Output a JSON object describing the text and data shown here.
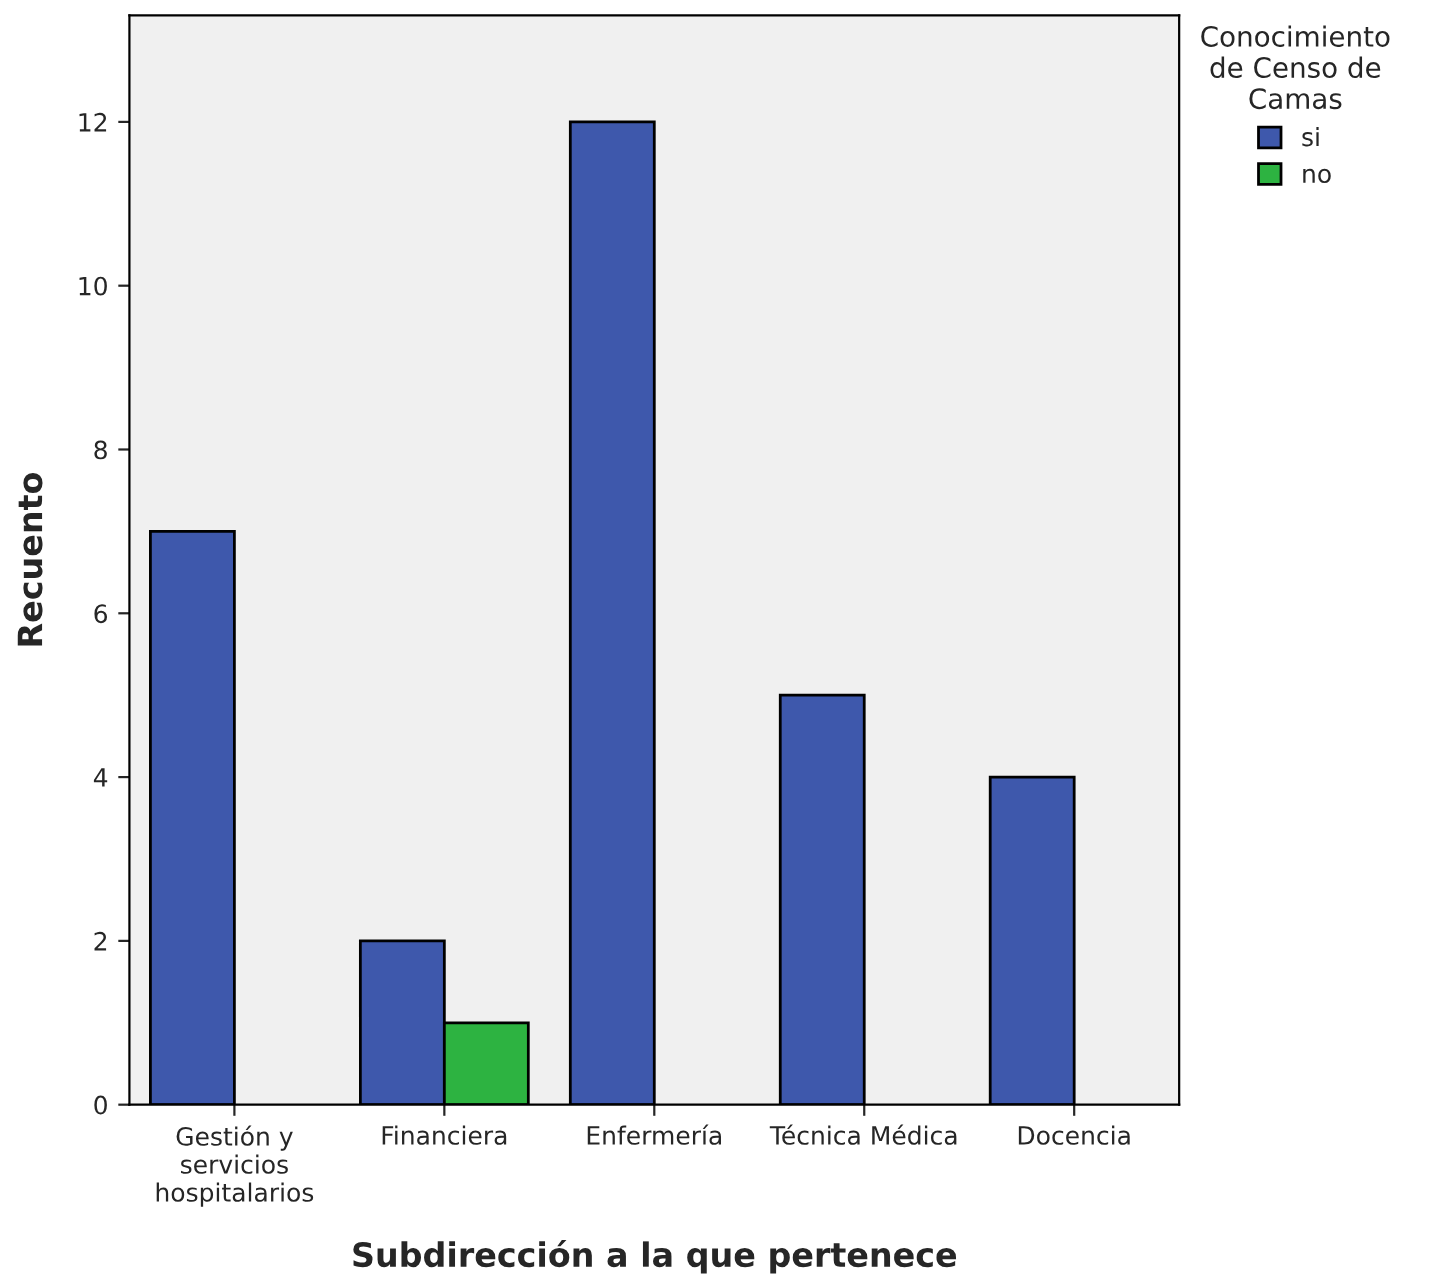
{
  "chart_data": {
    "type": "bar",
    "xlabel": "Subdirección a la que pertenece",
    "ylabel": "Recuento",
    "categories": [
      "Gestión y\nservicios\nhospitalarios",
      "Financiera",
      "Enfermería",
      "Técnica Médica",
      "Docencia"
    ],
    "series": [
      {
        "name": "si",
        "color": "#3e58ac",
        "values": [
          7,
          2,
          12,
          5,
          4
        ]
      },
      {
        "name": "no",
        "color": "#2db341",
        "values": [
          null,
          1,
          null,
          null,
          null
        ]
      }
    ],
    "ylim": [
      0,
      13.3
    ],
    "yticks": [
      0,
      2,
      4,
      6,
      8,
      10,
      12
    ],
    "legend_title": "Conocimiento\nde Censo de\nCamas",
    "legend": "top right",
    "grid": false
  }
}
